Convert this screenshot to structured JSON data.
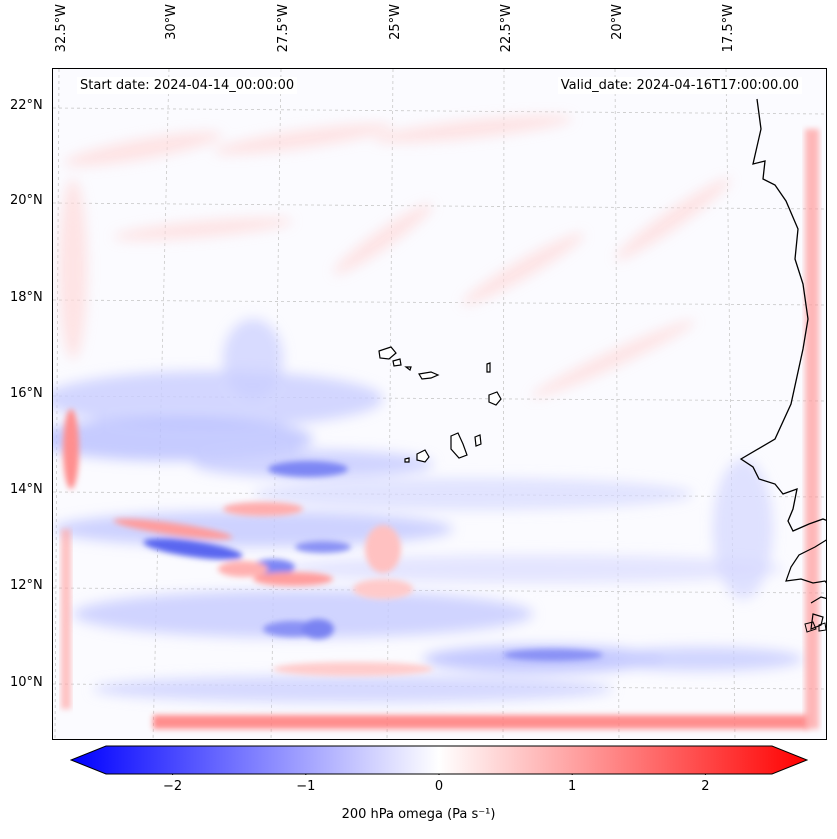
{
  "map": {
    "latitude_labels": [
      "22°N",
      "20°N",
      "18°N",
      "16°N",
      "14°N",
      "12°N",
      "10°N"
    ],
    "longitude_labels": [
      "32.5°W",
      "30°W",
      "27.5°W",
      "25°W",
      "22.5°W",
      "20°W",
      "17.5°W"
    ],
    "start_date": "Start date: 2024-04-14_00:00:00",
    "valid_date": "Valid_date: 2024-04-16T17:00:00.00"
  },
  "colorbar": {
    "tick_labels": [
      "−2",
      "−1",
      "0",
      "1",
      "2"
    ],
    "tick_values": [
      -2,
      -1,
      0,
      1,
      2
    ],
    "min": -2.5,
    "max": 2.5,
    "label": "200 hPa omega (Pa s⁻¹)",
    "low_color": "#0000ff",
    "mid_color": "#ffffff",
    "high_color": "#ff0000"
  }
}
